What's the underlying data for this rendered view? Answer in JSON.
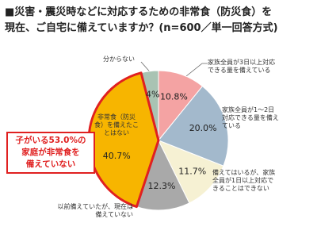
{
  "chart_data": {
    "type": "pie",
    "title": "■災害・震災時などに対応するための非常食（防災食）を",
    "subtitle": "現在、ご自宅に備えていますか？(n=600／単一回答方式)",
    "categories": [
      "家族全員が3日以上対応できる量を備えている",
      "家族全員が1～2日対応できる量を備えている",
      "備えてはいるが、家族全員が1日以上対応できることはできない",
      "以前備えていたが、現在は備えていない",
      "非常食（防災食）を備えたことはない",
      "分からない"
    ],
    "values": [
      10.8,
      20.0,
      11.7,
      12.3,
      40.7,
      4
    ],
    "value_labels": [
      "10.8%",
      "20.0%",
      "11.7%",
      "12.3%",
      "40.7%",
      "4%"
    ],
    "colors": [
      "#f4a3a3",
      "#a3b9cc",
      "#f6f1d3",
      "#a9a9a9",
      "#f7b500",
      "#a9c3b3"
    ],
    "highlight": 4,
    "annotation": [
      "子がいる53.0%の",
      "家庭が非常食を",
      "備えていない"
    ]
  }
}
